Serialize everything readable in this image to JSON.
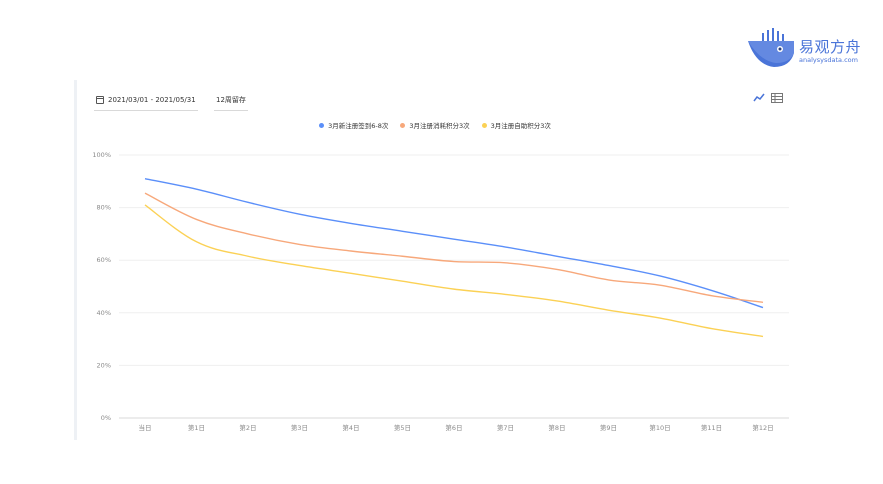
{
  "brand": {
    "name": "易观方舟",
    "domain": "analysysdata.com",
    "color": "#4a74d8"
  },
  "toolbar": {
    "date_range": "2021/03/01 - 2021/05/31",
    "retention_period": "12周留存",
    "icons": [
      "calendar-icon",
      "trend-chart-icon",
      "table-icon"
    ]
  },
  "chart_data": {
    "type": "line",
    "categories": [
      "当日",
      "第1日",
      "第2日",
      "第3日",
      "第4日",
      "第5日",
      "第6日",
      "第7日",
      "第8日",
      "第9日",
      "第10日",
      "第11日",
      "第12日"
    ],
    "ylim": [
      0,
      100
    ],
    "yticks": [
      "0%",
      "20%",
      "40%",
      "60%",
      "80%",
      "100%"
    ],
    "grid": true,
    "legend_position": "top-center",
    "series": [
      {
        "name": "3月新注册签到6-8次",
        "color": "#5b8ff9",
        "values": [
          91,
          87,
          82,
          77.5,
          74,
          71,
          68,
          65,
          61.5,
          58,
          54,
          48.5,
          42
        ]
      },
      {
        "name": "3月注册消耗积分3次",
        "color": "#f7a87b",
        "values": [
          85.5,
          75.5,
          70,
          66,
          63.5,
          61.5,
          59.5,
          59,
          56.5,
          52.5,
          50.5,
          46.5,
          44
        ]
      },
      {
        "name": "3月注册自助积分3次",
        "color": "#fbd155",
        "values": [
          81,
          67,
          61.5,
          58,
          55,
          52,
          49,
          47,
          44.5,
          41,
          38,
          34,
          31
        ]
      }
    ]
  }
}
